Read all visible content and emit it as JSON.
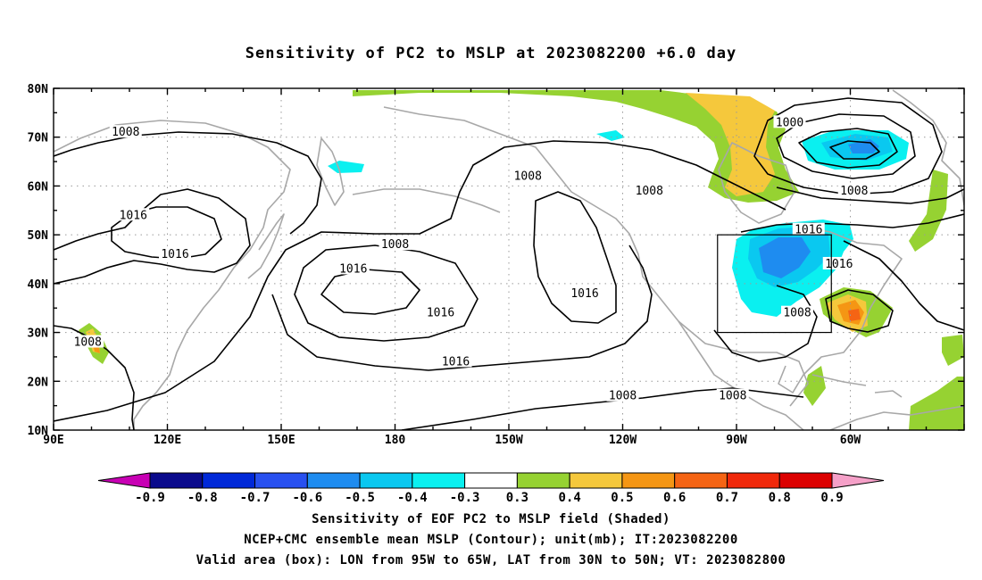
{
  "title": "Sensitivity of PC2 to MSLP at 2023082200 +6.0 day",
  "axes": {
    "lat_labels": [
      "80N",
      "70N",
      "60N",
      "50N",
      "40N",
      "30N",
      "20N",
      "10N"
    ],
    "lon_labels": [
      "90E",
      "120E",
      "150E",
      "180",
      "150W",
      "120W",
      "90W",
      "60W"
    ]
  },
  "contour_labels": [
    {
      "text": "1008",
      "lon": 109,
      "lat": 71
    },
    {
      "text": "1016",
      "lon": 111,
      "lat": 54
    },
    {
      "text": "1016",
      "lon": 122,
      "lat": 46
    },
    {
      "text": "1008",
      "lon": 99,
      "lat": 28
    },
    {
      "text": "1008",
      "lon": 180,
      "lat": 48
    },
    {
      "text": "1016",
      "lon": 169,
      "lat": 43
    },
    {
      "text": "1016",
      "lon": 192,
      "lat": 34
    },
    {
      "text": "1016",
      "lon": 196,
      "lat": 24
    },
    {
      "text": "1008",
      "lon": 215,
      "lat": 62
    },
    {
      "text": "1008",
      "lon": 247,
      "lat": 59
    },
    {
      "text": "1016",
      "lon": 230,
      "lat": 38
    },
    {
      "text": "1008",
      "lon": 240,
      "lat": 17
    },
    {
      "text": "1008",
      "lon": 269,
      "lat": 17
    },
    {
      "text": "1000",
      "lon": 284,
      "lat": 73
    },
    {
      "text": "1008",
      "lon": 301,
      "lat": 59
    },
    {
      "text": "1016",
      "lon": 289,
      "lat": 51
    },
    {
      "text": "1016",
      "lon": 297,
      "lat": 44
    },
    {
      "text": "1008",
      "lon": 286,
      "lat": 34
    }
  ],
  "valid_box": {
    "lon_min": 265,
    "lon_max": 295,
    "lat_min": 30,
    "lat_max": 50
  },
  "colorbar": {
    "labels": [
      "-0.9",
      "-0.8",
      "-0.7",
      "-0.6",
      "-0.5",
      "-0.4",
      "-0.3",
      "0.3",
      "0.4",
      "0.5",
      "0.6",
      "0.7",
      "0.8",
      "0.9"
    ],
    "colors": [
      "#0a0a8c",
      "#0028d8",
      "#2850f0",
      "#1e8cf0",
      "#0ac8f0",
      "#0af0f0",
      "#ffffff",
      "#96d232",
      "#f5c83c",
      "#f59614",
      "#f56414",
      "#f0280a",
      "#dc0000"
    ],
    "low_extension_color": "#c800b4",
    "high_extension_color": "#f5a0c8"
  },
  "captions": {
    "line1": "Sensitivity of EOF PC2 to MSLP field (Shaded)",
    "line2": "NCEP+CMC ensemble mean MSLP (Contour); unit(mb); IT:2023082200",
    "line3": "Valid area (box): LON from 95W to 65W, LAT from 30N to 50N; VT: 2023082800"
  }
}
